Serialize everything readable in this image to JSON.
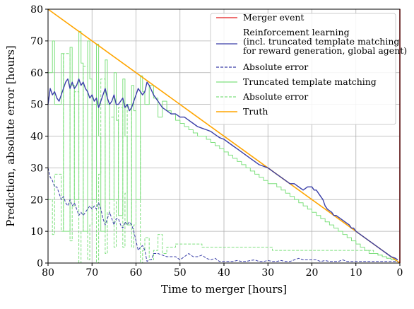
{
  "chart_data": {
    "type": "line",
    "xlabel": "Time to merger [hours]",
    "ylabel": "Prediction, absolute error [hours]",
    "xlim": [
      80,
      0
    ],
    "ylim": [
      0,
      80
    ],
    "x_ticks": [
      80,
      70,
      60,
      50,
      40,
      30,
      20,
      10,
      0
    ],
    "y_ticks": [
      0,
      10,
      20,
      30,
      40,
      50,
      60,
      70,
      80
    ],
    "grid": true,
    "legend_position": "top-right",
    "legend": [
      {
        "key": "merger",
        "lines": [
          "Merger event"
        ]
      },
      {
        "key": "rl",
        "lines": [
          "Reinforcement learning",
          "(incl. truncated template matching",
          " for reward generation, global agent)"
        ]
      },
      {
        "key": "rl_err",
        "lines": [
          "Absolute error"
        ]
      },
      {
        "key": "ttm",
        "lines": [
          "Truncated template matching"
        ]
      },
      {
        "key": "ttm_err",
        "lines": [
          "Absolute error"
        ]
      },
      {
        "key": "truth",
        "lines": [
          "Truth"
        ]
      }
    ],
    "colors": {
      "merger": "#e41a1c",
      "rl": "#3a3fa8",
      "ttm": "#7fe07f",
      "truth": "#ffa500",
      "grid": "#b0b0b0"
    },
    "merger_event": {
      "x": 0
    },
    "series": [
      {
        "key": "truth",
        "name": "Truth",
        "style": "solid",
        "x": [
          80,
          0
        ],
        "y": [
          80,
          0
        ]
      },
      {
        "key": "rl",
        "name": "Reinforcement learning",
        "style": "solid",
        "x": [
          80,
          79.5,
          79,
          78.5,
          78,
          77.5,
          77,
          76.5,
          76,
          75.5,
          75,
          74.5,
          74,
          73.5,
          73,
          72.5,
          72,
          71.5,
          71,
          70.5,
          70,
          69.5,
          69,
          68.5,
          68,
          67.5,
          67,
          66.5,
          66,
          65.5,
          65,
          64.5,
          64,
          63.5,
          63,
          62.5,
          62,
          61.5,
          61,
          60.5,
          60,
          59.5,
          59,
          58.5,
          58,
          57.5,
          57,
          56,
          55,
          54,
          53,
          52,
          51,
          50,
          49,
          48,
          47,
          46,
          45,
          44,
          43,
          42,
          41,
          40,
          39,
          38,
          37,
          36,
          35,
          34,
          33,
          32,
          31,
          30,
          29,
          28,
          27,
          26,
          25,
          24,
          23,
          22,
          21,
          20,
          19.5,
          19,
          18.5,
          18,
          17.5,
          17,
          16.5,
          16,
          15.5,
          15,
          14.5,
          14,
          13.5,
          13,
          12.5,
          12,
          11.5,
          11,
          10.5,
          10,
          9,
          8,
          7,
          6,
          5,
          4,
          3,
          2,
          1,
          0.5
        ],
        "y": [
          50,
          55,
          53,
          54,
          52,
          51,
          53,
          55,
          57,
          58,
          55,
          57,
          55,
          56,
          58,
          56,
          57,
          55,
          54,
          52,
          53,
          51,
          52,
          49,
          51,
          53,
          55,
          52,
          50,
          51,
          53,
          50,
          50,
          51,
          52,
          49,
          50,
          48,
          49,
          51,
          53,
          55,
          54,
          53,
          54,
          57,
          56,
          53,
          51,
          49,
          48,
          47,
          47,
          46,
          46,
          45,
          44,
          43,
          42.5,
          42,
          41.5,
          40.5,
          39.5,
          39,
          38,
          37,
          36,
          35,
          34,
          33,
          32,
          31,
          30.5,
          30,
          29,
          28,
          27,
          26,
          25,
          25,
          24,
          23,
          24,
          24,
          23,
          23,
          22,
          21,
          20,
          18,
          17,
          16.5,
          16,
          15,
          15,
          14.5,
          14,
          13.5,
          13,
          12.5,
          12,
          11,
          11,
          10,
          9,
          8,
          7,
          6,
          5,
          4,
          3,
          2,
          1.5,
          1
        ]
      },
      {
        "key": "rl_err",
        "name": "Absolute error",
        "style": "dashed",
        "x": [
          80,
          79.5,
          79,
          78.5,
          78,
          77.5,
          77,
          76.5,
          76,
          75.5,
          75,
          74.5,
          74,
          73.5,
          73,
          72.5,
          72,
          71.5,
          71,
          70.5,
          70,
          69.5,
          69,
          68.5,
          68,
          67.5,
          67,
          66.5,
          66,
          65.5,
          65,
          64.5,
          64,
          63.5,
          63,
          62.5,
          62,
          61.5,
          61,
          60.5,
          60,
          59.5,
          59,
          58.5,
          58,
          57.5,
          57,
          56.5,
          56,
          55,
          54,
          53,
          52,
          51,
          50,
          49,
          48,
          47,
          46,
          45,
          44,
          43,
          42,
          41,
          40,
          39,
          38,
          37,
          36,
          35,
          34,
          33,
          32,
          31,
          30,
          29,
          28,
          27,
          26,
          25,
          24,
          23,
          22,
          21,
          20,
          19,
          18,
          17,
          16,
          15,
          14,
          13,
          12,
          11,
          10,
          9,
          8,
          7,
          6,
          5,
          4,
          3,
          2,
          1,
          0.5
        ],
        "y": [
          30,
          27,
          26,
          24,
          24,
          22,
          20,
          21,
          19,
          18,
          20,
          18,
          19,
          17,
          15,
          16,
          15,
          16,
          17,
          18,
          17,
          18,
          17,
          19,
          17,
          14,
          12,
          14,
          16,
          14,
          12,
          14,
          14,
          12,
          11,
          13,
          12,
          13,
          12,
          10,
          7,
          4,
          5,
          5.5,
          4,
          0.5,
          1,
          1,
          3,
          3,
          2.5,
          2,
          2,
          2,
          1,
          2,
          3,
          2,
          2,
          2.5,
          1.5,
          1,
          1.5,
          0.5,
          0.5,
          0.5,
          0.5,
          0.8,
          0.5,
          0.5,
          0.8,
          1,
          0.5,
          0.5,
          0.8,
          0.5,
          0.5,
          0.8,
          0.5,
          0.5,
          1,
          1.5,
          1,
          1,
          1,
          1,
          0.5,
          0.8,
          0.5,
          0.5,
          0.5,
          1,
          0.5,
          0.5,
          0.5,
          0.5,
          0.5,
          0.5,
          0.5,
          0.5,
          0.5,
          0.5,
          0.5,
          0.5,
          0.5
        ]
      },
      {
        "key": "ttm",
        "name": "Truncated template matching",
        "style": "solid",
        "x": [
          80,
          79,
          78.5,
          77,
          76.5,
          75,
          74.5,
          74,
          73,
          72.5,
          72,
          71,
          70.5,
          70,
          69,
          68.5,
          68,
          67,
          66.5,
          66,
          65,
          64.5,
          64,
          63,
          62.5,
          62,
          61,
          60.5,
          60,
          59,
          58.5,
          58,
          57,
          56,
          55,
          54,
          53,
          52,
          51,
          50,
          49,
          48,
          47,
          46,
          45,
          44,
          43,
          42,
          41,
          40,
          39,
          38,
          37,
          36,
          35,
          34,
          33,
          32,
          31,
          30,
          29,
          28,
          27,
          26,
          25,
          24,
          23,
          22,
          21,
          20,
          19,
          18,
          17,
          16,
          15,
          14,
          13,
          12,
          11,
          10,
          9,
          8,
          7,
          6,
          5,
          4,
          3,
          2,
          1
        ],
        "y": [
          60,
          70,
          50,
          66,
          10,
          68,
          56,
          20,
          73,
          63,
          10,
          70,
          58,
          20,
          69,
          40,
          10,
          64,
          50,
          20,
          60,
          45,
          15,
          58,
          40,
          12,
          56,
          48,
          20,
          59,
          54,
          50,
          56,
          52,
          46,
          51,
          48,
          47,
          45,
          44,
          43,
          42,
          41,
          40,
          40,
          39,
          38,
          37,
          36,
          35,
          34,
          33,
          32,
          31,
          30,
          29,
          28,
          27,
          26,
          25,
          25,
          24,
          23,
          22,
          21,
          20,
          19,
          18,
          17,
          16,
          15,
          14,
          13,
          12,
          11,
          10,
          9,
          8,
          7,
          6,
          5,
          4,
          3,
          3,
          2.5,
          2,
          1.5,
          1,
          0.5
        ]
      },
      {
        "key": "ttm_err",
        "name": "Absolute error",
        "style": "dashed",
        "x": [
          80,
          79,
          78.5,
          77,
          76.5,
          75,
          74.5,
          74,
          73,
          72.5,
          72,
          71,
          70.5,
          70,
          69,
          68.5,
          68,
          67,
          66.5,
          66,
          65,
          64.5,
          64,
          63,
          62.5,
          62,
          61,
          60.5,
          60,
          59,
          58.5,
          58,
          57,
          56,
          55,
          54,
          53,
          52,
          51,
          50,
          49,
          48,
          47,
          46,
          45,
          44,
          43,
          42,
          41,
          40,
          39,
          38,
          37,
          36,
          35,
          34,
          33,
          32,
          31,
          30,
          29,
          28,
          27,
          26,
          25,
          24,
          23,
          22,
          21,
          20,
          19,
          18,
          17,
          16,
          15,
          14,
          13,
          12,
          11,
          10,
          9,
          8,
          7,
          6,
          5,
          4,
          3,
          2,
          1
        ],
        "y": [
          20,
          9,
          28,
          10,
          66,
          7,
          18,
          54,
          0,
          10,
          62,
          1,
          12,
          50,
          0,
          28,
          58,
          3,
          16,
          46,
          5,
          20,
          49,
          5,
          22,
          50,
          5,
          12,
          40,
          0,
          4,
          8,
          1,
          4,
          9,
          3,
          5,
          5,
          6,
          6,
          6,
          6,
          6,
          6,
          5,
          5,
          5,
          5,
          5,
          5,
          5,
          5,
          5,
          5,
          5,
          5,
          5,
          5,
          5,
          5,
          4,
          4,
          4,
          4,
          4,
          4,
          4,
          4,
          4,
          4,
          4,
          4,
          4,
          4,
          4,
          4,
          4,
          4,
          4,
          4,
          4,
          4,
          4,
          3,
          2.5,
          2,
          1.5,
          1,
          0.5
        ]
      }
    ]
  }
}
